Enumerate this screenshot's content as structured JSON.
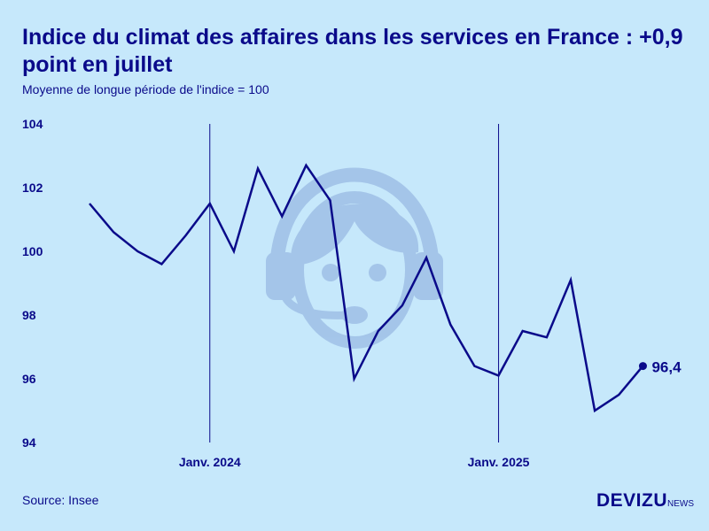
{
  "header": {
    "title": "Indice du climat des affaires dans les services en France : +0,9 point en juillet",
    "subtitle": "Moyenne de longue période de l'indice = 100"
  },
  "footer": {
    "source": "Source: Insee",
    "logo_main": "DEVIZU",
    "logo_sub": "NEWS"
  },
  "colors": {
    "background": "#c6e8fb",
    "line": "#0a0a8a",
    "watermark": "#9fbfe6"
  },
  "watermark_icon": "headset-customer-service-icon",
  "chart_data": {
    "type": "line",
    "x": [
      "2023-08",
      "2023-09",
      "2023-10",
      "2023-11",
      "2023-12",
      "2024-01",
      "2024-02",
      "2024-03",
      "2024-04",
      "2024-05",
      "2024-06",
      "2024-07",
      "2024-08",
      "2024-09",
      "2024-10",
      "2024-11",
      "2024-12",
      "2025-01",
      "2025-02",
      "2025-03",
      "2025-04",
      "2025-05",
      "2025-06",
      "2025-07"
    ],
    "values": [
      101.5,
      100.6,
      100.0,
      99.6,
      100.5,
      101.5,
      100.0,
      102.6,
      101.1,
      102.7,
      101.6,
      96.0,
      97.5,
      98.3,
      99.8,
      97.7,
      96.4,
      96.1,
      97.5,
      97.3,
      99.1,
      95.0,
      95.5,
      96.4
    ],
    "ylim": [
      94,
      104
    ],
    "yticks": [
      94,
      96,
      98,
      100,
      102,
      104
    ],
    "xticks": [
      {
        "date": "2024-01",
        "label": "Janv. 2024"
      },
      {
        "date": "2025-01",
        "label": "Janv. 2025"
      }
    ],
    "last_label": "96,4"
  }
}
